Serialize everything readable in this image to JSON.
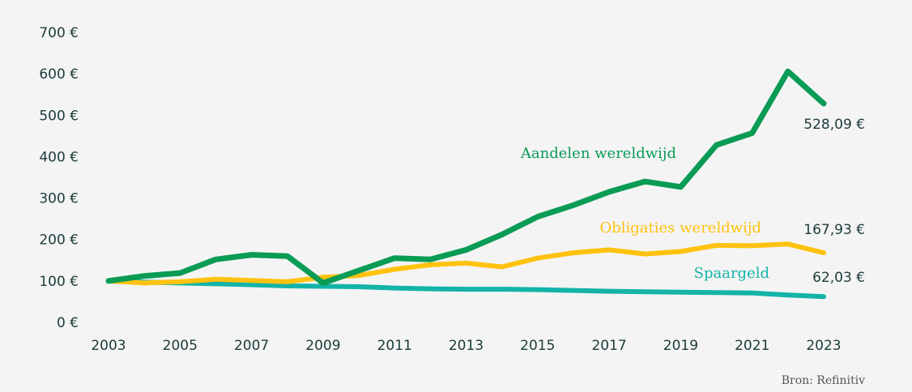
{
  "chart_data": {
    "type": "line",
    "ylim": [
      0,
      700
    ],
    "y_ticks": [
      "0 €",
      "100 €",
      "200 €",
      "300 €",
      "400 €",
      "500 €",
      "600 €",
      "700 €"
    ],
    "x_ticks": [
      "2003",
      "2005",
      "2007",
      "2009",
      "2011",
      "2013",
      "2015",
      "2017",
      "2019",
      "2021",
      "2023"
    ],
    "grid": false,
    "x": [
      2003,
      2004,
      2005,
      2006,
      2007,
      2008,
      2009,
      2010,
      2011,
      2012,
      2013,
      2014,
      2015,
      2016,
      2017,
      2018,
      2019,
      2020,
      2021,
      2022,
      2023
    ],
    "series": [
      {
        "name": "Aandelen wereldwijd",
        "color": "#0a9b55",
        "end_label": "528,09 €",
        "values": [
          100,
          112,
          119,
          152,
          163,
          160,
          95,
          125,
          155,
          152,
          175,
          212,
          255,
          283,
          315,
          340,
          327,
          428,
          457,
          606,
          528.09
        ]
      },
      {
        "name": "Obligaties wereldwijd",
        "color": "#ffc20e",
        "end_label": "167,93 €",
        "values": [
          100,
          95,
          98,
          104,
          101,
          98,
          109,
          113,
          128,
          139,
          143,
          134,
          155,
          168,
          175,
          165,
          171,
          186,
          185,
          189,
          167.93
        ]
      },
      {
        "name": "Spaargeld",
        "color": "#13b3a8",
        "end_label": "62,03 €",
        "values": [
          100,
          97,
          95,
          93,
          91,
          88,
          87,
          86,
          83,
          81,
          80,
          80,
          79,
          77,
          75,
          74,
          73,
          72,
          71,
          66,
          62.03
        ]
      }
    ]
  },
  "source": "Bron: Refinitiv"
}
